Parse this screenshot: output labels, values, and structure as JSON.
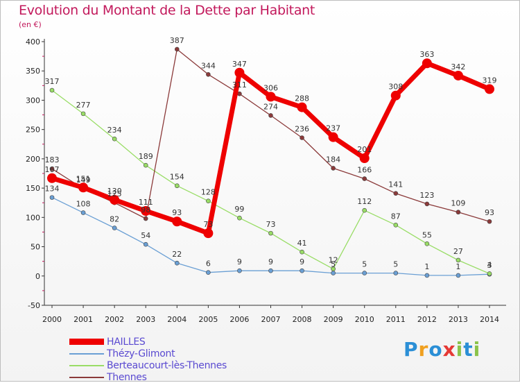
{
  "title": "Evolution du Montant de la Dette par Habitant",
  "subtitle": "(en €)",
  "brand": {
    "text": "Proxiti",
    "letters": [
      {
        "ch": "P",
        "color": "#2b8fd6"
      },
      {
        "ch": "r",
        "color": "#f0a020"
      },
      {
        "ch": "o",
        "color": "#2b8fd6"
      },
      {
        "ch": "x",
        "color": "#e53935"
      },
      {
        "ch": "i",
        "color": "#8bc34a"
      },
      {
        "ch": "t",
        "color": "#2b8fd6"
      },
      {
        "ch": "i",
        "color": "#8bc34a"
      }
    ]
  },
  "chart_data": {
    "type": "line",
    "x": [
      "2000",
      "2001",
      "2002",
      "2003",
      "2004",
      "2005",
      "2006",
      "2007",
      "2008",
      "2009",
      "2010",
      "2011",
      "2012",
      "2013",
      "2014"
    ],
    "ylim": [
      -50,
      400
    ],
    "yticks": [
      -50,
      0,
      50,
      100,
      150,
      200,
      250,
      300,
      350,
      400
    ],
    "grid": false,
    "legend": "bottom-left",
    "series": [
      {
        "name": "HAILLES",
        "color": "#ee0000",
        "width": 7,
        "marker_r": 7,
        "values": [
          167,
          151,
          130,
          111,
          93,
          73,
          347,
          306,
          288,
          237,
          201,
          308,
          363,
          342,
          319
        ],
        "labels": [
          "167",
          "151",
          "130",
          "111",
          "93",
          "73",
          "347",
          "306",
          "288",
          "237",
          "201",
          "308",
          "363",
          "342",
          "319"
        ]
      },
      {
        "name": "Thézy-Glimont",
        "color": "#6a9fd4",
        "width": 1.3,
        "marker_r": 3,
        "values": [
          134,
          108,
          82,
          54,
          22,
          6,
          9,
          9,
          9,
          5,
          5,
          5,
          1,
          1,
          3
        ],
        "labels": [
          "134",
          "108",
          "82",
          "54",
          "22",
          "6",
          "9",
          "9",
          "9",
          "5",
          "5",
          "5",
          "1",
          "1",
          "3"
        ]
      },
      {
        "name": "Berteaucourt-lès-Thennes",
        "color": "#99dd66",
        "width": 1.3,
        "marker_r": 3,
        "values": [
          317,
          277,
          234,
          189,
          154,
          128,
          99,
          73,
          41,
          12,
          112,
          87,
          55,
          27,
          4
        ],
        "labels": [
          "317",
          "277",
          "234",
          "189",
          "154",
          "128",
          "99",
          "73",
          "41",
          "12",
          "112",
          "87",
          "55",
          "27",
          "4"
        ]
      },
      {
        "name": "Thennes",
        "color": "#8b3a3a",
        "width": 1.3,
        "marker_r": 3,
        "values": [
          183,
          149,
          125,
          98,
          387,
          344,
          311,
          274,
          236,
          184,
          166,
          141,
          123,
          109,
          93
        ],
        "labels": [
          "183",
          "149",
          "125",
          "98",
          "387",
          "344",
          "311",
          "274",
          "236",
          "184",
          "166",
          "141",
          "123",
          "109",
          "93"
        ]
      }
    ]
  }
}
